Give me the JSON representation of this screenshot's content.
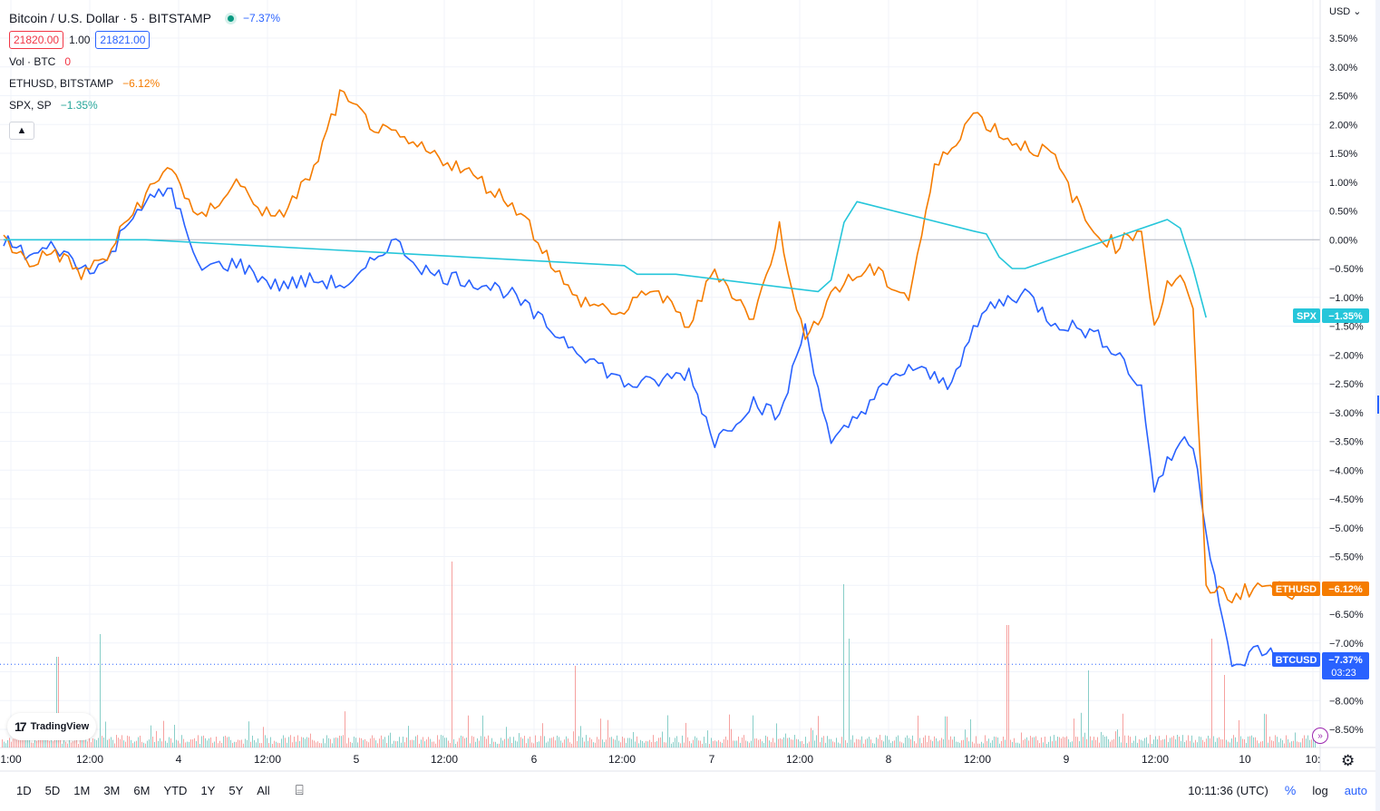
{
  "header": {
    "title": "Bitcoin / U.S. Dollar · 5 · BITSTAMP",
    "change": "−7.37%",
    "bid": "21820.00",
    "qty": "1.00",
    "ask": "21821.00",
    "vol_label": "Vol · BTC",
    "vol_value": "0",
    "eth_label": "ETHUSD, BITSTAMP",
    "eth_change": "−6.12%",
    "spx_label": "SPX, SP",
    "spx_change": "−1.35%"
  },
  "price_scale": {
    "currency": "USD",
    "icons": {
      "currency_dropdown": "chevron-down-icon",
      "settings": "gear-icon",
      "collapse": "chevron-up-icon",
      "bottom_sep": "calendar-range-icon"
    }
  },
  "badges": {
    "spx_name": "SPX",
    "spx_value": "−1.35%",
    "eth_name": "ETHUSD",
    "eth_value": "−6.12%",
    "btc_name": "BTCUSD",
    "btc_value": "−7.37%",
    "btc_timer": "03:23"
  },
  "logo": {
    "text": "TradingView"
  },
  "bottom_bar": {
    "ranges": [
      "1D",
      "5D",
      "1M",
      "3M",
      "6M",
      "YTD",
      "1Y",
      "5Y",
      "All"
    ],
    "clock": "10:11:36 (UTC)",
    "pct": "%",
    "log": "log",
    "auto": "auto"
  },
  "chart_data": {
    "type": "line",
    "title": "Bitcoin / U.S. Dollar · 5 · BITSTAMP",
    "xlabel": "",
    "ylabel": "",
    "y_unit": "percent change",
    "y_ticks": [
      "3.50%",
      "3.00%",
      "2.50%",
      "2.00%",
      "1.50%",
      "1.00%",
      "0.50%",
      "0.00%",
      "−0.50%",
      "−1.00%",
      "−1.50%",
      "−2.00%",
      "−2.50%",
      "−3.00%",
      "−3.50%",
      "−4.00%",
      "−4.50%",
      "−5.00%",
      "−5.50%",
      "−6.00%",
      "−6.50%",
      "−7.00%",
      "−7.50%",
      "−8.00%",
      "−8.50%"
    ],
    "ylim": [
      -8.8,
      3.9
    ],
    "x_ticks": [
      "1:00",
      "12:00",
      "4",
      "12:00",
      "5",
      "12:00",
      "6",
      "12:00",
      "7",
      "12:00",
      "8",
      "12:00",
      "9",
      "12:00",
      "10",
      "10:"
    ],
    "grid": true,
    "colors": {
      "btc": "#2962ff",
      "eth": "#f57c00",
      "spx": "#26c6da",
      "vol_up": "#26a69a",
      "vol_down": "#ef5350"
    },
    "series": [
      {
        "name": "BTCUSD",
        "x": [
          0.0,
          0.02,
          0.04,
          0.06,
          0.08,
          0.1,
          0.13,
          0.15,
          0.18,
          0.21,
          0.24,
          0.27,
          0.3,
          0.33,
          0.36,
          0.39,
          0.42,
          0.45,
          0.48,
          0.5,
          0.53,
          0.55,
          0.58,
          0.6,
          0.62,
          0.64,
          0.67,
          0.7,
          0.73,
          0.76,
          0.79,
          0.81,
          0.84,
          0.86,
          0.88,
          0.89,
          0.9,
          0.91,
          0.92,
          0.93,
          0.95,
          0.97,
          1.0
        ],
        "values": [
          0.0,
          -0.3,
          -0.1,
          -0.5,
          -0.4,
          0.5,
          0.9,
          -0.5,
          -0.4,
          -0.8,
          -0.7,
          -0.8,
          0.0,
          -0.6,
          -0.7,
          -0.9,
          -1.5,
          -2.0,
          -2.5,
          -2.5,
          -2.3,
          -3.5,
          -2.8,
          -3.1,
          -1.5,
          -3.6,
          -2.8,
          -2.2,
          -2.5,
          -1.2,
          -0.9,
          -1.4,
          -1.6,
          -1.9,
          -2.6,
          -4.3,
          -3.9,
          -3.5,
          -3.5,
          -5.0,
          -7.5,
          -7.1,
          -7.37
        ]
      },
      {
        "name": "ETHUSD",
        "x": [
          0.0,
          0.02,
          0.04,
          0.06,
          0.08,
          0.1,
          0.13,
          0.15,
          0.18,
          0.21,
          0.24,
          0.26,
          0.29,
          0.32,
          0.35,
          0.37,
          0.4,
          0.44,
          0.48,
          0.5,
          0.53,
          0.55,
          0.58,
          0.6,
          0.62,
          0.64,
          0.67,
          0.7,
          0.72,
          0.75,
          0.78,
          0.81,
          0.84,
          0.86,
          0.88,
          0.89,
          0.9,
          0.91,
          0.92,
          0.93,
          0.95,
          0.97,
          1.0
        ],
        "values": [
          0.0,
          -0.4,
          -0.2,
          -0.6,
          -0.3,
          0.5,
          1.3,
          0.3,
          1.0,
          0.3,
          1.2,
          2.5,
          1.9,
          1.6,
          1.3,
          1.0,
          0.5,
          -1.0,
          -1.3,
          -0.8,
          -1.5,
          -0.5,
          -1.4,
          0.2,
          -1.8,
          -0.9,
          -0.5,
          -1.0,
          1.2,
          2.2,
          1.7,
          1.5,
          0.2,
          -0.1,
          0.2,
          -1.5,
          -0.8,
          -0.6,
          -1.3,
          -6.0,
          -6.2,
          -6.0,
          -6.12
        ]
      },
      {
        "name": "SPX",
        "x": [
          0.0,
          0.08,
          0.1,
          0.11,
          0.48,
          0.49,
          0.52,
          0.63,
          0.64,
          0.65,
          0.66,
          0.75,
          0.76,
          0.77,
          0.78,
          0.79,
          0.9,
          0.91,
          0.92,
          0.93
        ],
        "values": [
          0.0,
          0.0,
          0.0,
          0.0,
          -0.45,
          -0.6,
          -0.6,
          -0.9,
          -0.7,
          0.3,
          0.66,
          0.15,
          0.1,
          -0.3,
          -0.5,
          -0.5,
          0.35,
          0.2,
          -0.5,
          -1.35
        ]
      }
    ],
    "volume_note": "volume histogram along bottom of chart"
  }
}
